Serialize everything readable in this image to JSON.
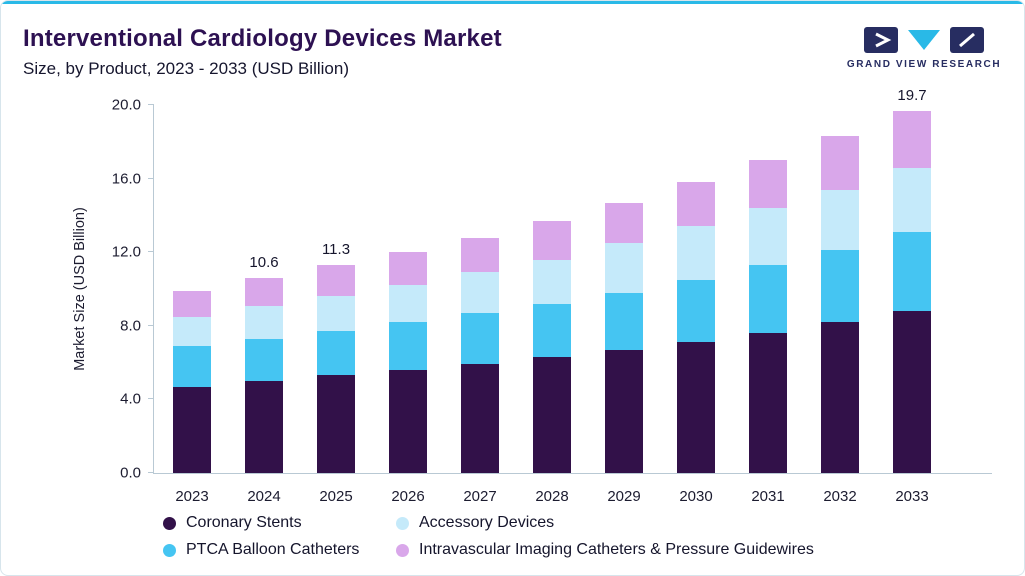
{
  "header": {
    "title": "Interventional Cardiology Devices Market",
    "subtitle": "Size, by Product, 2023 - 2033 (USD Billion)",
    "logo_text": "GRAND VIEW RESEARCH"
  },
  "chart_data": {
    "type": "bar",
    "stacked": true,
    "title": "Interventional Cardiology Devices Market Size, by Product, 2023 - 2033 (USD Billion)",
    "xlabel": "",
    "ylabel": "Market Size (USD Billion)",
    "ylim": [
      0,
      20
    ],
    "yticks": [
      "0.0",
      "4.0",
      "8.0",
      "12.0",
      "16.0",
      "20.0"
    ],
    "grid": false,
    "legend_position": "bottom",
    "categories": [
      "2023",
      "2024",
      "2025",
      "2026",
      "2027",
      "2028",
      "2029",
      "2030",
      "2031",
      "2032",
      "2033"
    ],
    "series": [
      {
        "name": "Coronary Stents",
        "color": "#321149",
        "values": [
          4.7,
          5.0,
          5.3,
          5.6,
          5.9,
          6.3,
          6.7,
          7.1,
          7.6,
          8.2,
          8.8
        ]
      },
      {
        "name": "PTCA Balloon Catheters",
        "color": "#45c5f2",
        "values": [
          2.2,
          2.3,
          2.4,
          2.6,
          2.8,
          2.9,
          3.1,
          3.4,
          3.7,
          3.9,
          4.3
        ]
      },
      {
        "name": "Accessory Devices",
        "color": "#c5eafa",
        "values": [
          1.6,
          1.8,
          1.9,
          2.0,
          2.2,
          2.4,
          2.7,
          2.9,
          3.1,
          3.3,
          3.5
        ]
      },
      {
        "name": "Intravascular Imaging Catheters & Pressure Guidewires",
        "color": "#d9a7ea",
        "values": [
          1.4,
          1.5,
          1.7,
          1.8,
          1.9,
          2.1,
          2.2,
          2.4,
          2.6,
          2.9,
          3.1
        ]
      }
    ],
    "totals": [
      9.9,
      10.6,
      11.3,
      12.0,
      12.8,
      13.7,
      14.7,
      15.8,
      17.0,
      18.3,
      19.7
    ],
    "bar_labels": [
      "",
      "10.6",
      "11.3",
      "",
      "",
      "",
      "",
      "",
      "",
      "",
      "19.7"
    ]
  },
  "legend": {
    "items": [
      {
        "label": "Coronary Stents",
        "color": "#321149"
      },
      {
        "label": "Accessory Devices",
        "color": "#c5eafa"
      },
      {
        "label": "PTCA Balloon Catheters",
        "color": "#45c5f2"
      },
      {
        "label": "Intravascular Imaging Catheters & Pressure Guidewires",
        "color": "#d9a7ea"
      }
    ]
  },
  "colors": {
    "accent": "#29b9e7",
    "navy": "#272d61",
    "title": "#2d1152",
    "axis": "#b9c9d4"
  }
}
